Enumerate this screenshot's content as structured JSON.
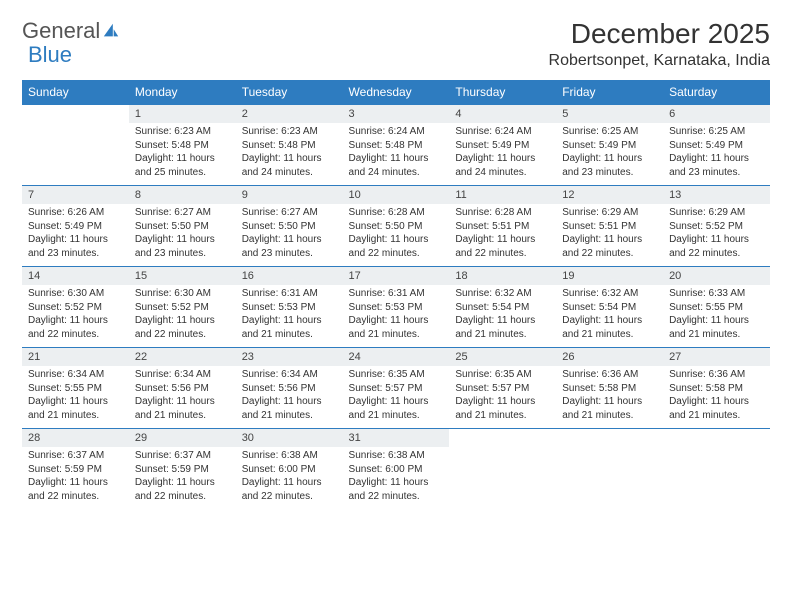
{
  "logo": {
    "word1": "General",
    "word2": "Blue"
  },
  "title": "December 2025",
  "location": "Robertsonpet, Karnataka, India",
  "colors": {
    "accent": "#2e7cc0",
    "date_bg": "#eceff1",
    "page_bg": "#ffffff"
  },
  "day_headers": [
    "Sunday",
    "Monday",
    "Tuesday",
    "Wednesday",
    "Thursday",
    "Friday",
    "Saturday"
  ],
  "weeks": [
    {
      "dates": [
        "",
        "1",
        "2",
        "3",
        "4",
        "5",
        "6"
      ],
      "info": [
        "",
        "Sunrise: 6:23 AM\nSunset: 5:48 PM\nDaylight: 11 hours and 25 minutes.",
        "Sunrise: 6:23 AM\nSunset: 5:48 PM\nDaylight: 11 hours and 24 minutes.",
        "Sunrise: 6:24 AM\nSunset: 5:48 PM\nDaylight: 11 hours and 24 minutes.",
        "Sunrise: 6:24 AM\nSunset: 5:49 PM\nDaylight: 11 hours and 24 minutes.",
        "Sunrise: 6:25 AM\nSunset: 5:49 PM\nDaylight: 11 hours and 23 minutes.",
        "Sunrise: 6:25 AM\nSunset: 5:49 PM\nDaylight: 11 hours and 23 minutes."
      ]
    },
    {
      "dates": [
        "7",
        "8",
        "9",
        "10",
        "11",
        "12",
        "13"
      ],
      "info": [
        "Sunrise: 6:26 AM\nSunset: 5:49 PM\nDaylight: 11 hours and 23 minutes.",
        "Sunrise: 6:27 AM\nSunset: 5:50 PM\nDaylight: 11 hours and 23 minutes.",
        "Sunrise: 6:27 AM\nSunset: 5:50 PM\nDaylight: 11 hours and 23 minutes.",
        "Sunrise: 6:28 AM\nSunset: 5:50 PM\nDaylight: 11 hours and 22 minutes.",
        "Sunrise: 6:28 AM\nSunset: 5:51 PM\nDaylight: 11 hours and 22 minutes.",
        "Sunrise: 6:29 AM\nSunset: 5:51 PM\nDaylight: 11 hours and 22 minutes.",
        "Sunrise: 6:29 AM\nSunset: 5:52 PM\nDaylight: 11 hours and 22 minutes."
      ]
    },
    {
      "dates": [
        "14",
        "15",
        "16",
        "17",
        "18",
        "19",
        "20"
      ],
      "info": [
        "Sunrise: 6:30 AM\nSunset: 5:52 PM\nDaylight: 11 hours and 22 minutes.",
        "Sunrise: 6:30 AM\nSunset: 5:52 PM\nDaylight: 11 hours and 22 minutes.",
        "Sunrise: 6:31 AM\nSunset: 5:53 PM\nDaylight: 11 hours and 21 minutes.",
        "Sunrise: 6:31 AM\nSunset: 5:53 PM\nDaylight: 11 hours and 21 minutes.",
        "Sunrise: 6:32 AM\nSunset: 5:54 PM\nDaylight: 11 hours and 21 minutes.",
        "Sunrise: 6:32 AM\nSunset: 5:54 PM\nDaylight: 11 hours and 21 minutes.",
        "Sunrise: 6:33 AM\nSunset: 5:55 PM\nDaylight: 11 hours and 21 minutes."
      ]
    },
    {
      "dates": [
        "21",
        "22",
        "23",
        "24",
        "25",
        "26",
        "27"
      ],
      "info": [
        "Sunrise: 6:34 AM\nSunset: 5:55 PM\nDaylight: 11 hours and 21 minutes.",
        "Sunrise: 6:34 AM\nSunset: 5:56 PM\nDaylight: 11 hours and 21 minutes.",
        "Sunrise: 6:34 AM\nSunset: 5:56 PM\nDaylight: 11 hours and 21 minutes.",
        "Sunrise: 6:35 AM\nSunset: 5:57 PM\nDaylight: 11 hours and 21 minutes.",
        "Sunrise: 6:35 AM\nSunset: 5:57 PM\nDaylight: 11 hours and 21 minutes.",
        "Sunrise: 6:36 AM\nSunset: 5:58 PM\nDaylight: 11 hours and 21 minutes.",
        "Sunrise: 6:36 AM\nSunset: 5:58 PM\nDaylight: 11 hours and 21 minutes."
      ]
    },
    {
      "dates": [
        "28",
        "29",
        "30",
        "31",
        "",
        "",
        ""
      ],
      "info": [
        "Sunrise: 6:37 AM\nSunset: 5:59 PM\nDaylight: 11 hours and 22 minutes.",
        "Sunrise: 6:37 AM\nSunset: 5:59 PM\nDaylight: 11 hours and 22 minutes.",
        "Sunrise: 6:38 AM\nSunset: 6:00 PM\nDaylight: 11 hours and 22 minutes.",
        "Sunrise: 6:38 AM\nSunset: 6:00 PM\nDaylight: 11 hours and 22 minutes.",
        "",
        "",
        ""
      ]
    }
  ]
}
